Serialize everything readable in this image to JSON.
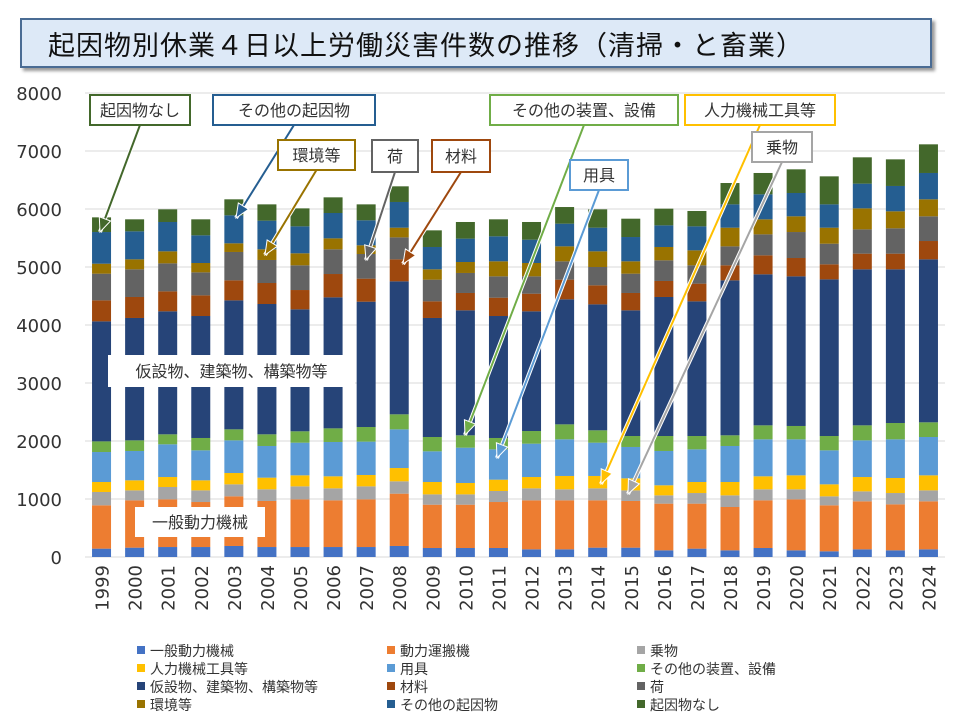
{
  "chart_data": {
    "type": "bar",
    "stacked": true,
    "title": "起因物別休業４日以上労働災害件数の推移（清掃・と畜業）",
    "xlabel": "",
    "ylabel": "",
    "ylim": [
      0,
      8000
    ],
    "yticks": [
      "0",
      "1000",
      "2000",
      "3000",
      "4000",
      "5000",
      "6000",
      "7000",
      "8000"
    ],
    "grid": true,
    "legend_position": "bottom",
    "categories": [
      "1999",
      "2000",
      "2001",
      "2002",
      "2003",
      "2004",
      "2005",
      "2006",
      "2007",
      "2008",
      "2009",
      "2010",
      "2011",
      "2012",
      "2013",
      "2014",
      "2015",
      "2016",
      "2017",
      "2018",
      "2019",
      "2020",
      "2021",
      "2022",
      "2023",
      "2024"
    ],
    "series": [
      {
        "name": "一般動力機械",
        "color": "#4472C4",
        "values": [
          144,
          161,
          172,
          172,
          190,
          172,
          172,
          172,
          172,
          190,
          155,
          155,
          155,
          132,
          132,
          161,
          161,
          115,
          144,
          115,
          155,
          115,
          98,
          132,
          115,
          132
        ]
      },
      {
        "name": "動力運搬機",
        "color": "#ED7D31",
        "values": [
          747,
          816,
          822,
          776,
          856,
          794,
          822,
          805,
          822,
          902,
          747,
          747,
          793,
          845,
          845,
          816,
          805,
          805,
          776,
          747,
          822,
          879,
          793,
          828,
          793,
          828
        ]
      },
      {
        "name": "乗物",
        "color": "#A5A5A5",
        "values": [
          230,
          172,
          213,
          201,
          207,
          201,
          224,
          207,
          224,
          213,
          178,
          178,
          190,
          207,
          190,
          207,
          183,
          143,
          183,
          201,
          190,
          173,
          155,
          172,
          195,
          189
        ]
      },
      {
        "name": "人力機械工具等",
        "color": "#FFC000",
        "values": [
          172,
          173,
          172,
          173,
          195,
          201,
          190,
          207,
          196,
          229,
          213,
          196,
          195,
          195,
          230,
          213,
          207,
          173,
          190,
          230,
          224,
          241,
          207,
          247,
          259,
          259
        ]
      },
      {
        "name": "用具",
        "color": "#5B9BD5",
        "values": [
          517,
          506,
          564,
          517,
          563,
          546,
          563,
          592,
          575,
          667,
          529,
          609,
          523,
          575,
          632,
          574,
          541,
          592,
          563,
          621,
          638,
          621,
          586,
          632,
          667,
          661
        ]
      },
      {
        "name": "その他の装置、設備",
        "color": "#70AD47",
        "values": [
          184,
          183,
          172,
          213,
          190,
          201,
          196,
          235,
          252,
          259,
          247,
          213,
          196,
          218,
          258,
          213,
          189,
          258,
          230,
          184,
          241,
          230,
          247,
          259,
          281,
          253
        ]
      },
      {
        "name": "仮設物、建築物、構築物等",
        "color": "#264478",
        "values": [
          2069,
          2110,
          2121,
          2103,
          2224,
          2247,
          2103,
          2259,
          2161,
          2293,
          2052,
          2155,
          2103,
          2064,
          2156,
          2172,
          2167,
          2397,
          2322,
          2672,
          2604,
          2580,
          2701,
          2690,
          2650,
          2810
        ]
      },
      {
        "name": "材料",
        "color": "#9E480E",
        "values": [
          362,
          362,
          344,
          356,
          345,
          362,
          333,
          402,
          397,
          379,
          287,
          299,
          316,
          304,
          339,
          328,
          299,
          276,
          305,
          259,
          327,
          316,
          259,
          270,
          270,
          316
        ]
      },
      {
        "name": "荷",
        "color": "#636363",
        "values": [
          460,
          477,
          483,
          397,
          489,
          397,
          426,
          426,
          425,
          379,
          374,
          345,
          368,
          299,
          316,
          316,
          333,
          356,
          316,
          327,
          362,
          448,
          356,
          419,
          437,
          426
        ]
      },
      {
        "name": "環境等",
        "color": "#997300",
        "values": [
          172,
          172,
          207,
          161,
          149,
          184,
          207,
          189,
          150,
          167,
          178,
          189,
          259,
          230,
          258,
          270,
          213,
          230,
          258,
          322,
          259,
          271,
          276,
          362,
          293,
          293
        ]
      },
      {
        "name": "その他の起因物",
        "color": "#255E91",
        "values": [
          546,
          483,
          506,
          477,
          483,
          494,
          465,
          437,
          431,
          443,
          385,
          403,
          431,
          402,
          391,
          408,
          419,
          373,
          414,
          402,
          431,
          402,
          402,
          426,
          437,
          454
        ]
      },
      {
        "name": "起因物なし",
        "color": "#43682B",
        "values": [
          253,
          207,
          218,
          276,
          276,
          281,
          310,
          270,
          275,
          270,
          287,
          287,
          293,
          305,
          287,
          316,
          316,
          288,
          265,
          368,
          368,
          408,
          483,
          454,
          459,
          494
        ]
      }
    ],
    "annotations": [
      {
        "text": "起因物なし",
        "series": 11,
        "color": "#43682B"
      },
      {
        "text": "その他の起因物",
        "series": 10,
        "color": "#255E91"
      },
      {
        "text": "環境等",
        "series": 9,
        "color": "#997300"
      },
      {
        "text": "荷",
        "series": 8,
        "color": "#636363"
      },
      {
        "text": "材料",
        "series": 7,
        "color": "#9E480E"
      },
      {
        "text": "その他の装置、設備",
        "series": 5,
        "color": "#70AD47"
      },
      {
        "text": "用具",
        "series": 4,
        "color": "#5B9BD5"
      },
      {
        "text": "人力機械工具等",
        "series": 3,
        "color": "#FFC000"
      },
      {
        "text": "乗物",
        "series": 2,
        "color": "#A5A5A5"
      },
      {
        "text": "仮設物、建築物、構築物等",
        "series": 6,
        "color": "#FFFFFF"
      },
      {
        "text": "一般動力機械",
        "series": 0,
        "color": "#FFFFFF"
      }
    ]
  }
}
